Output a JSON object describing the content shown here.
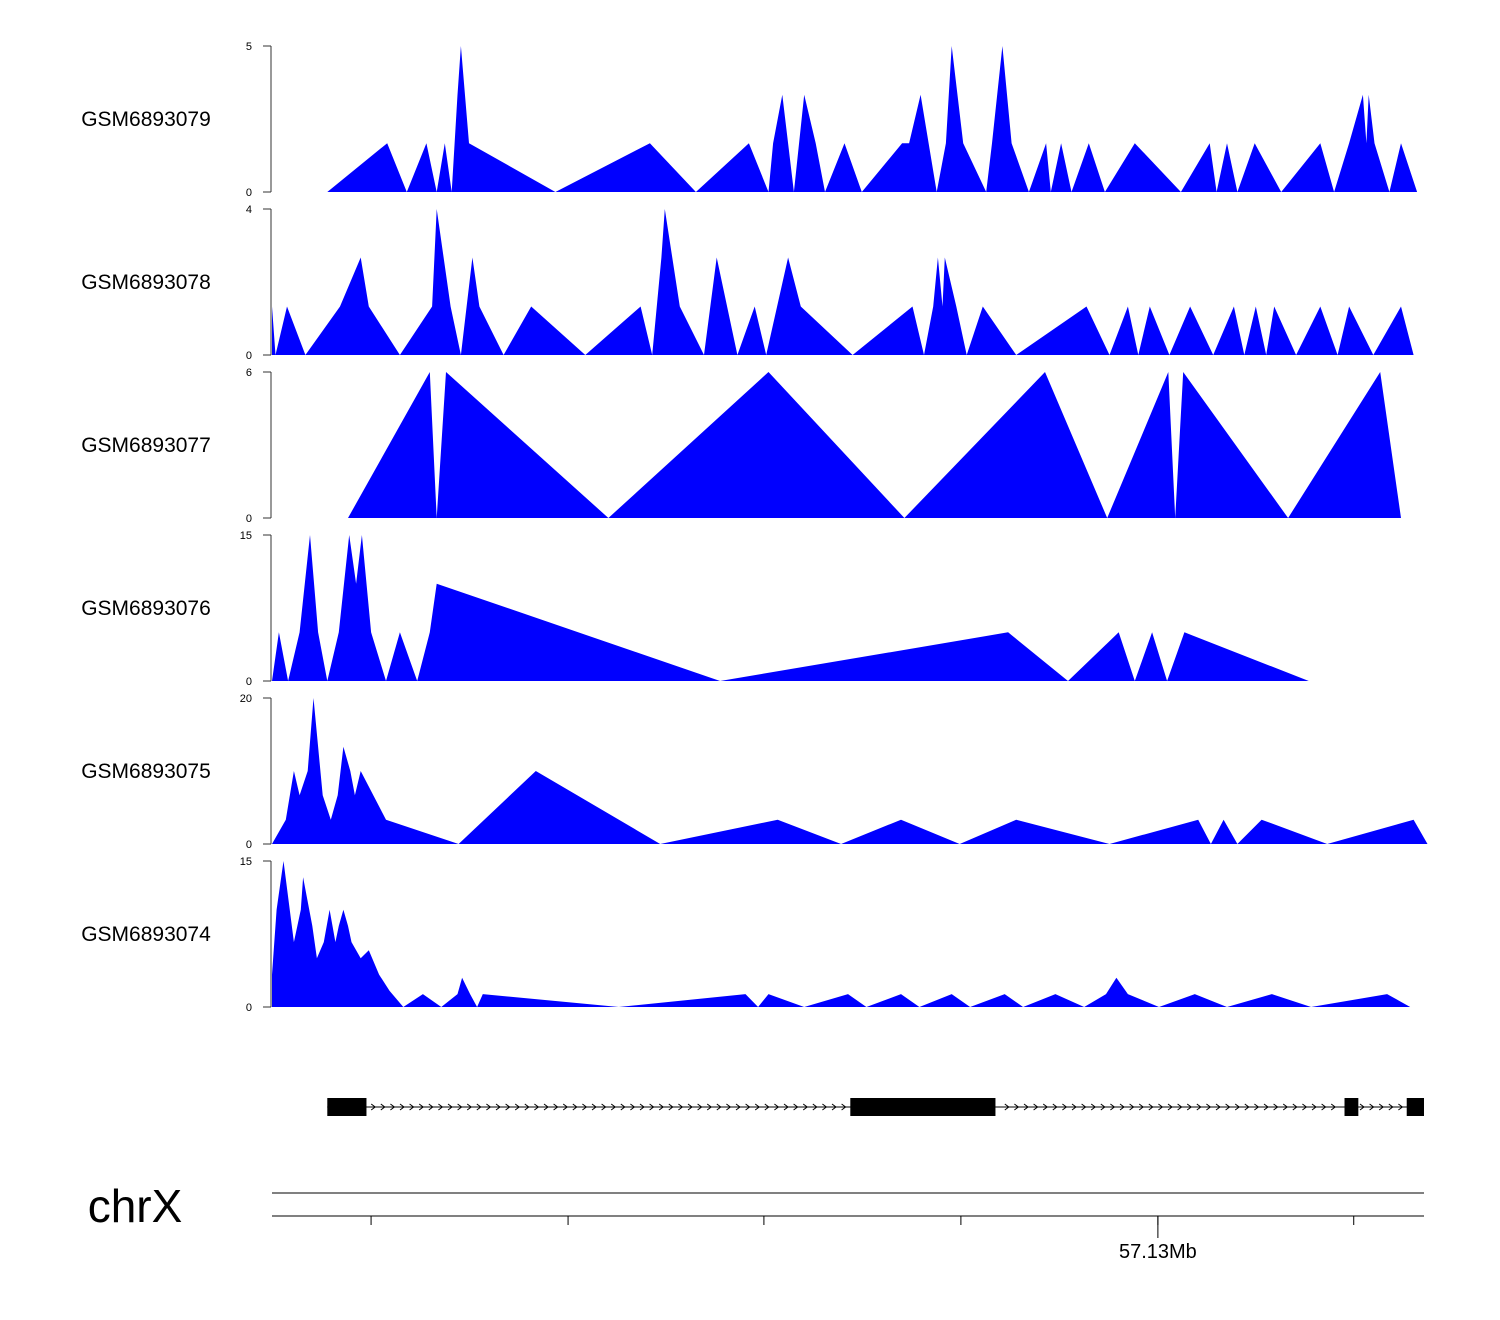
{
  "chart_data": {
    "type": "area",
    "chromosome": "chrX",
    "coordinate_label": "57.13Mb",
    "fill_color": "#0000ff",
    "gene_color": "#000000",
    "x_range": [
      0,
      1000
    ],
    "tracks": [
      {
        "name": "GSM6893079",
        "y_axis": {
          "min": 0,
          "max": 5,
          "tick_labels": [
            "0",
            "5"
          ]
        },
        "points": [
          [
            48,
            0
          ],
          [
            100,
            1.67
          ],
          [
            117,
            0
          ],
          [
            134,
            1.67
          ],
          [
            143,
            0
          ],
          [
            150,
            1.67
          ],
          [
            156,
            0
          ],
          [
            161,
            3.33
          ],
          [
            164,
            5
          ],
          [
            171,
            1.67
          ],
          [
            246,
            0
          ],
          [
            328,
            1.67
          ],
          [
            368,
            0
          ],
          [
            414,
            1.67
          ],
          [
            431,
            0
          ],
          [
            435,
            1.67
          ],
          [
            443,
            3.33
          ],
          [
            453,
            0
          ],
          [
            462,
            3.33
          ],
          [
            472,
            1.67
          ],
          [
            480,
            0
          ],
          [
            497,
            1.67
          ],
          [
            512,
            0
          ],
          [
            547,
            1.67
          ],
          [
            553,
            1.67
          ],
          [
            563,
            3.33
          ],
          [
            577,
            0
          ],
          [
            585,
            1.67
          ],
          [
            590,
            5
          ],
          [
            600,
            1.67
          ],
          [
            620,
            0
          ],
          [
            625,
            1.67
          ],
          [
            634,
            5
          ],
          [
            642,
            1.67
          ],
          [
            657,
            0
          ],
          [
            672,
            1.67
          ],
          [
            676,
            0
          ],
          [
            685,
            1.67
          ],
          [
            694,
            0
          ],
          [
            709,
            1.67
          ],
          [
            723,
            0
          ],
          [
            749,
            1.67
          ],
          [
            789,
            0
          ],
          [
            814,
            1.67
          ],
          [
            820,
            0
          ],
          [
            829,
            1.67
          ],
          [
            838,
            0
          ],
          [
            853,
            1.67
          ],
          [
            876,
            0
          ],
          [
            910,
            1.67
          ],
          [
            922,
            0
          ],
          [
            935,
            1.67
          ],
          [
            947,
            3.33
          ],
          [
            950,
            1.67
          ],
          [
            952,
            3.33
          ],
          [
            957,
            1.67
          ],
          [
            970,
            0
          ],
          [
            980,
            1.67
          ],
          [
            994,
            0
          ]
        ]
      },
      {
        "name": "GSM6893078",
        "y_axis": {
          "min": 0,
          "max": 4,
          "tick_labels": [
            "0",
            "4"
          ]
        },
        "points": [
          [
            0,
            1.33
          ],
          [
            3,
            0
          ],
          [
            13,
            1.33
          ],
          [
            29,
            0
          ],
          [
            59,
            1.33
          ],
          [
            77,
            2.67
          ],
          [
            84,
            1.33
          ],
          [
            111,
            0
          ],
          [
            139,
            1.33
          ],
          [
            143,
            4
          ],
          [
            155,
            1.33
          ],
          [
            164,
            0
          ],
          [
            174,
            2.67
          ],
          [
            180,
            1.33
          ],
          [
            201,
            0
          ],
          [
            225,
            1.33
          ],
          [
            272,
            0
          ],
          [
            320,
            1.33
          ],
          [
            330,
            0
          ],
          [
            338,
            2.67
          ],
          [
            341,
            4
          ],
          [
            354,
            1.33
          ],
          [
            375,
            0
          ],
          [
            386,
            2.67
          ],
          [
            404,
            0
          ],
          [
            419,
            1.33
          ],
          [
            429,
            0
          ],
          [
            448,
            2.67
          ],
          [
            459,
            1.33
          ],
          [
            504,
            0
          ],
          [
            556,
            1.33
          ],
          [
            566,
            0
          ],
          [
            574,
            1.33
          ],
          [
            578,
            2.67
          ],
          [
            582,
            1.33
          ],
          [
            584,
            2.67
          ],
          [
            594,
            1.33
          ],
          [
            603,
            0
          ],
          [
            617,
            1.33
          ],
          [
            646,
            0
          ],
          [
            707,
            1.33
          ],
          [
            727,
            0
          ],
          [
            743,
            1.33
          ],
          [
            752,
            0
          ],
          [
            762,
            1.33
          ],
          [
            779,
            0
          ],
          [
            797,
            1.33
          ],
          [
            817,
            0
          ],
          [
            835,
            1.33
          ],
          [
            844,
            0
          ],
          [
            854,
            1.33
          ],
          [
            863,
            0
          ],
          [
            870,
            1.33
          ],
          [
            889,
            0
          ],
          [
            910,
            1.33
          ],
          [
            925,
            0
          ],
          [
            935,
            1.33
          ],
          [
            956,
            0
          ],
          [
            980,
            1.33
          ],
          [
            991,
            0
          ]
        ]
      },
      {
        "name": "GSM6893077",
        "y_axis": {
          "min": 0,
          "max": 6,
          "tick_labels": [
            "0",
            "6"
          ]
        },
        "points": [
          [
            66,
            0
          ],
          [
            137,
            6
          ],
          [
            143,
            0
          ],
          [
            151,
            6
          ],
          [
            292,
            0
          ],
          [
            431,
            6
          ],
          [
            549,
            0
          ],
          [
            671,
            6
          ],
          [
            725,
            0
          ],
          [
            778,
            6
          ],
          [
            784,
            0
          ],
          [
            791,
            6
          ],
          [
            882,
            0
          ],
          [
            962,
            6
          ],
          [
            980,
            0
          ]
        ]
      },
      {
        "name": "GSM6893076",
        "y_axis": {
          "min": 0,
          "max": 15,
          "tick_labels": [
            "0",
            "15"
          ]
        },
        "points": [
          [
            0,
            0
          ],
          [
            6,
            5
          ],
          [
            14,
            0
          ],
          [
            24,
            5
          ],
          [
            33,
            15
          ],
          [
            40,
            5
          ],
          [
            48,
            0
          ],
          [
            58,
            5
          ],
          [
            67,
            15
          ],
          [
            73,
            10
          ],
          [
            78,
            15
          ],
          [
            86,
            5
          ],
          [
            99,
            0
          ],
          [
            111,
            5
          ],
          [
            126,
            0
          ],
          [
            137,
            5
          ],
          [
            143,
            10
          ],
          [
            389,
            0
          ],
          [
            639,
            5
          ],
          [
            691,
            0
          ],
          [
            735,
            5
          ],
          [
            749,
            0
          ],
          [
            764,
            5
          ],
          [
            777,
            0
          ],
          [
            792,
            5
          ],
          [
            900,
            0
          ]
        ]
      },
      {
        "name": "GSM6893075",
        "y_axis": {
          "min": 0,
          "max": 20,
          "tick_labels": [
            "0",
            "20"
          ]
        },
        "points": [
          [
            0,
            0
          ],
          [
            12,
            3.33
          ],
          [
            19,
            10
          ],
          [
            24,
            6.67
          ],
          [
            31,
            10
          ],
          [
            36,
            20
          ],
          [
            44,
            6.67
          ],
          [
            51,
            3.33
          ],
          [
            57,
            6.67
          ],
          [
            62,
            13.33
          ],
          [
            68,
            10
          ],
          [
            72,
            6.67
          ],
          [
            77,
            10
          ],
          [
            99,
            3.33
          ],
          [
            162,
            0
          ],
          [
            229,
            10
          ],
          [
            337,
            0
          ],
          [
            439,
            3.33
          ],
          [
            494,
            0
          ],
          [
            546,
            3.33
          ],
          [
            597,
            0
          ],
          [
            646,
            3.33
          ],
          [
            727,
            0
          ],
          [
            804,
            3.33
          ],
          [
            815,
            0
          ],
          [
            826,
            3.33
          ],
          [
            838,
            0
          ],
          [
            859,
            3.33
          ],
          [
            916,
            0
          ],
          [
            991,
            3.33
          ],
          [
            1003,
            0
          ]
        ]
      },
      {
        "name": "GSM6893074",
        "y_axis": {
          "min": 0,
          "max": 15,
          "tick_labels": [
            "0",
            "15"
          ]
        },
        "points": [
          [
            0,
            3.33
          ],
          [
            4,
            10
          ],
          [
            10,
            15
          ],
          [
            19,
            6.67
          ],
          [
            25,
            10
          ],
          [
            27,
            13.33
          ],
          [
            35,
            8.33
          ],
          [
            39,
            5
          ],
          [
            45,
            6.67
          ],
          [
            50,
            10
          ],
          [
            55,
            6.67
          ],
          [
            58,
            8.33
          ],
          [
            62,
            10
          ],
          [
            66,
            8.33
          ],
          [
            69,
            6.67
          ],
          [
            77,
            5
          ],
          [
            84,
            5.83
          ],
          [
            93,
            3.33
          ],
          [
            102,
            1.67
          ],
          [
            114,
            0
          ],
          [
            131,
            1.33
          ],
          [
            147,
            0
          ],
          [
            161,
            1.33
          ],
          [
            165,
            3
          ],
          [
            172,
            1.33
          ],
          [
            178,
            0
          ],
          [
            183,
            1.33
          ],
          [
            301,
            0
          ],
          [
            411,
            1.33
          ],
          [
            422,
            0
          ],
          [
            431,
            1.33
          ],
          [
            462,
            0
          ],
          [
            500,
            1.33
          ],
          [
            516,
            0
          ],
          [
            546,
            1.33
          ],
          [
            562,
            0
          ],
          [
            590,
            1.33
          ],
          [
            606,
            0
          ],
          [
            636,
            1.33
          ],
          [
            652,
            0
          ],
          [
            680,
            1.33
          ],
          [
            705,
            0
          ],
          [
            724,
            1.33
          ],
          [
            733,
            3
          ],
          [
            743,
            1.33
          ],
          [
            770,
            0
          ],
          [
            801,
            1.33
          ],
          [
            829,
            0
          ],
          [
            868,
            1.33
          ],
          [
            902,
            0
          ],
          [
            968,
            1.33
          ],
          [
            988,
            0
          ]
        ]
      }
    ],
    "gene": {
      "strand": "+",
      "start": 48,
      "end": 1000,
      "exons": [
        [
          48,
          82
        ],
        [
          502,
          628
        ],
        [
          931,
          943
        ],
        [
          985,
          1000
        ]
      ]
    },
    "genome_axis": {
      "tick_positions": [
        86,
        257,
        427,
        598,
        769,
        939
      ],
      "labeled_tick": {
        "position": 769,
        "label": "57.13Mb"
      }
    }
  }
}
